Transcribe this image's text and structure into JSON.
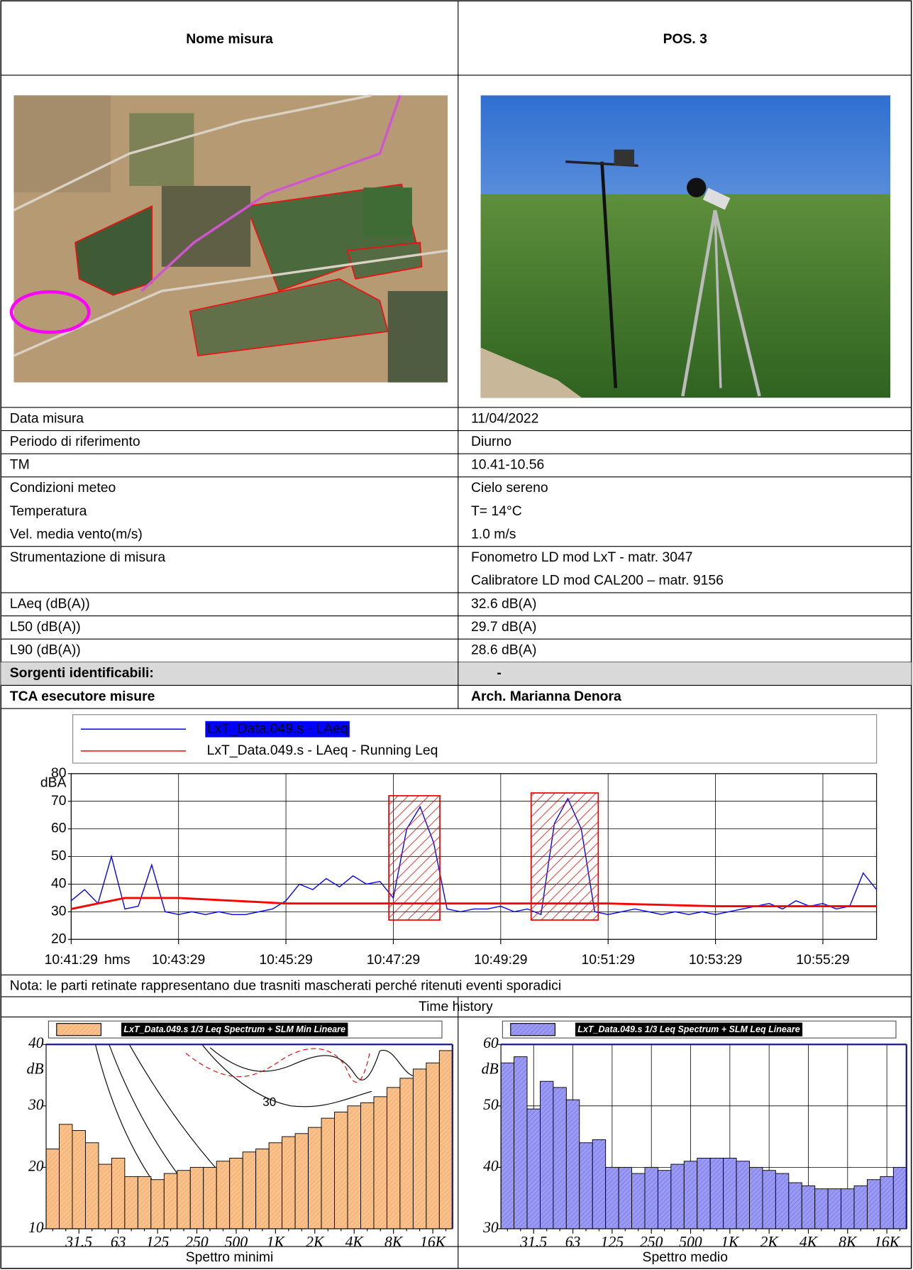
{
  "header": {
    "label": "Nome misura",
    "value": "POS. 3"
  },
  "rows": [
    {
      "label": "Data misura",
      "value": "11/04/2022"
    },
    {
      "label": "Periodo di riferimento",
      "value": "Diurno"
    },
    {
      "label": "TM",
      "value": "10.41-10.56"
    },
    {
      "label": "Condizioni meteo",
      "value": "Cielo sereno"
    },
    {
      "label": "Temperatura",
      "value": "T= 14°C"
    },
    {
      "label": "Vel. media vento(m/s)",
      "value": "1.0 m/s"
    },
    {
      "label": "Strumentazione di misura",
      "value": [
        "Fonometro LD mod LxT -  matr. 3047",
        "Calibratore LD mod CAL200 – matr. 9156"
      ]
    },
    {
      "label": "LAeq (dB(A))",
      "value": "32.6 dB(A)"
    },
    {
      "label": "L50 (dB(A))",
      "value": "29.7 dB(A)"
    },
    {
      "label": "L90 (dB(A))",
      "value": "28.6 dB(A)"
    }
  ],
  "sources": {
    "label": "Sorgenti identificabili:",
    "value": "-"
  },
  "operator": {
    "label": "TCA esecutore misure",
    "value": "Arch. Marianna Denora"
  },
  "note": "Nota: le parti retinate rappresentano due trasniti mascherati perché ritenuti eventi sporadici",
  "chart_caption": "Time history",
  "spectrum_captions": [
    "Spettro minimi",
    "Spettro medio"
  ],
  "chart_data": [
    {
      "type": "line",
      "xlabel": "hms",
      "ylabel": "dBA",
      "xlim": [
        "10:41:29",
        "10:56:29"
      ],
      "xticks": [
        "10:41:29",
        "10:43:29",
        "10:45:29",
        "10:47:29",
        "10:49:29",
        "10:51:29",
        "10:53:29",
        "10:55:29"
      ],
      "ylim": [
        20,
        80
      ],
      "yticks": [
        20,
        30,
        40,
        50,
        60,
        70,
        80
      ],
      "grid": true,
      "series": [
        {
          "name": "LxT_Data.049.s - LAeq",
          "color": "#0000ff",
          "x": [
            "10:41:29",
            "10:41:44",
            "10:41:59",
            "10:42:14",
            "10:42:29",
            "10:42:44",
            "10:42:59",
            "10:43:14",
            "10:43:29",
            "10:43:44",
            "10:43:59",
            "10:44:14",
            "10:44:29",
            "10:44:44",
            "10:44:59",
            "10:45:14",
            "10:45:29",
            "10:45:44",
            "10:45:59",
            "10:46:14",
            "10:46:29",
            "10:46:44",
            "10:46:59",
            "10:47:14",
            "10:47:29",
            "10:47:44",
            "10:47:59",
            "10:48:14",
            "10:48:29",
            "10:48:44",
            "10:48:59",
            "10:49:14",
            "10:49:29",
            "10:49:44",
            "10:49:59",
            "10:50:14",
            "10:50:29",
            "10:50:44",
            "10:50:59",
            "10:51:14",
            "10:51:29",
            "10:51:44",
            "10:51:59",
            "10:52:14",
            "10:52:29",
            "10:52:44",
            "10:52:59",
            "10:53:14",
            "10:53:29",
            "10:53:44",
            "10:53:59",
            "10:54:14",
            "10:54:29",
            "10:54:44",
            "10:54:59",
            "10:55:14",
            "10:55:29",
            "10:55:44",
            "10:55:59",
            "10:56:14",
            "10:56:29"
          ],
          "values": [
            34,
            38,
            33,
            50,
            31,
            32,
            47,
            30,
            29,
            30,
            29,
            30,
            29,
            29,
            30,
            31,
            34,
            40,
            38,
            42,
            39,
            43,
            40,
            41,
            35,
            60,
            68,
            55,
            31,
            30,
            31,
            31,
            32,
            30,
            31,
            29,
            62,
            71,
            60,
            30,
            29,
            30,
            31,
            30,
            29,
            30,
            29,
            30,
            29,
            30,
            31,
            32,
            33,
            31,
            34,
            32,
            33,
            31,
            32,
            44,
            38
          ]
        },
        {
          "name": "LxT_Data.049.s - LAeq - Running Leq",
          "color": "#ff0000",
          "x": [
            "10:41:29",
            "10:42:29",
            "10:43:29",
            "10:45:29",
            "10:47:29",
            "10:49:29",
            "10:51:29",
            "10:53:29",
            "10:55:29",
            "10:56:29"
          ],
          "values": [
            31,
            35,
            35,
            33,
            33,
            33,
            33,
            32,
            32,
            32
          ]
        }
      ],
      "highlights": [
        {
          "x": [
            "10:47:24",
            "10:48:21"
          ],
          "y": [
            27,
            72
          ]
        },
        {
          "x": [
            "10:50:03",
            "10:51:18"
          ],
          "y": [
            27,
            73
          ]
        }
      ]
    },
    {
      "type": "bar",
      "legend": "LxT_Data.049.s 1/3 Leq Spectrum + SLM Min Lineare",
      "color": "#f9c089",
      "ylabel": "dB",
      "annotation": "30",
      "grid": false,
      "categories": [
        null,
        null,
        "31.5",
        null,
        null,
        "63",
        null,
        null,
        "125",
        null,
        null,
        "250",
        null,
        null,
        "500",
        null,
        null,
        "1K",
        null,
        null,
        "2K",
        null,
        null,
        "4K",
        null,
        null,
        "8K",
        null,
        null,
        "16K",
        null
      ],
      "values": [
        23,
        27,
        26,
        24,
        20.5,
        21.5,
        18.5,
        18.5,
        18,
        19,
        19.5,
        20,
        20,
        21,
        21.5,
        22.5,
        23,
        24,
        25,
        25.5,
        26.5,
        28,
        29,
        30,
        30.5,
        31.5,
        33,
        34.5,
        36,
        37,
        39
      ],
      "ylim": [
        10,
        40
      ],
      "yticks": [
        10,
        20,
        30,
        40
      ]
    },
    {
      "type": "bar",
      "legend": "LxT_Data.049.s 1/3 Leq Spectrum + SLM Leq Lineare",
      "color": "#9a9af5",
      "ylabel": "dB",
      "grid": true,
      "categories": [
        null,
        null,
        "31.5",
        null,
        null,
        "63",
        null,
        null,
        "125",
        null,
        null,
        "250",
        null,
        null,
        "500",
        null,
        null,
        "1K",
        null,
        null,
        "2K",
        null,
        null,
        "4K",
        null,
        null,
        "8K",
        null,
        null,
        "16K",
        null
      ],
      "values": [
        57,
        58,
        49.5,
        54,
        53,
        51,
        44,
        44.5,
        40,
        40,
        39,
        40,
        39.5,
        40.5,
        41,
        41.5,
        41.5,
        41.5,
        41,
        40,
        39.5,
        39,
        37.5,
        37,
        36.5,
        36.5,
        36.5,
        37,
        38,
        38.5,
        40
      ],
      "ylim": [
        30,
        60
      ],
      "yticks": [
        30,
        40,
        50,
        60
      ]
    }
  ]
}
